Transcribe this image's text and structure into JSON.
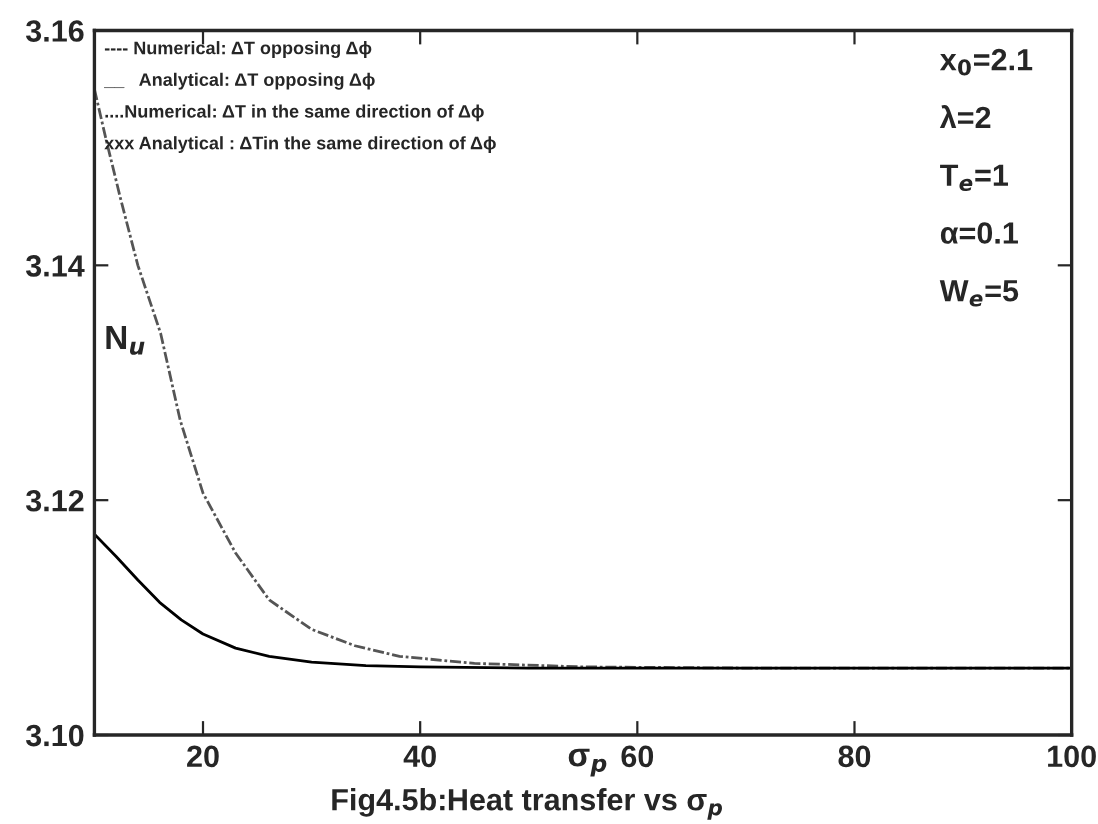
{
  "chart_data": {
    "type": "line",
    "title": "Fig4.5b:Heat transfer vs σ$_{p}$",
    "xlabel": "σ$_{p}$",
    "ylabel": "N$_{u}$",
    "xlim": [
      10,
      100
    ],
    "ylim": [
      3.1,
      3.16
    ],
    "xticks": [
      20,
      40,
      60,
      80,
      100
    ],
    "yticks": [
      {
        "value": 3.1,
        "label": "3.10"
      },
      3.12,
      3.14,
      3.16
    ],
    "grid": false,
    "series": [
      {
        "color": "#555555",
        "line_style": "dashed",
        "x": [
          10,
          11,
          12.4,
          14,
          16.1,
          17.9,
          20,
          23,
          26.1,
          30,
          34,
          38.1,
          45,
          55,
          70,
          85,
          100
        ],
        "values": [
          3.155,
          3.151,
          3.1457,
          3.14,
          3.1342,
          3.1268,
          3.1206,
          3.1155,
          3.1115,
          3.109,
          3.1076,
          3.1067,
          3.1061,
          3.1058,
          3.1057,
          3.1057,
          3.1057
        ]
      },
      {
        "color": "#000000",
        "line_style": "solid",
        "x": [
          10,
          12,
          14,
          16,
          18,
          20,
          23,
          26.1,
          30,
          35,
          40,
          50,
          70,
          100
        ],
        "values": [
          3.1171,
          3.1152,
          3.1132,
          3.1113,
          3.1098,
          3.1086,
          3.1074,
          3.1067,
          3.1062,
          3.1059,
          3.1058,
          3.1057,
          3.1057,
          3.1057
        ]
      }
    ],
    "annotations": [
      "---- Numerical: ΔT opposing Δϕ",
      "__   Analytical: ΔT opposing Δϕ",
      "....Numerical: ΔT in the same direction of Δϕ",
      "xxx Analytical : ΔTin the same direction of Δϕ",
      "x$_{0}$=2.1",
      "λ=2",
      "T$_{e}$=1",
      "α=0.1",
      "W$_{e}$=5"
    ]
  }
}
